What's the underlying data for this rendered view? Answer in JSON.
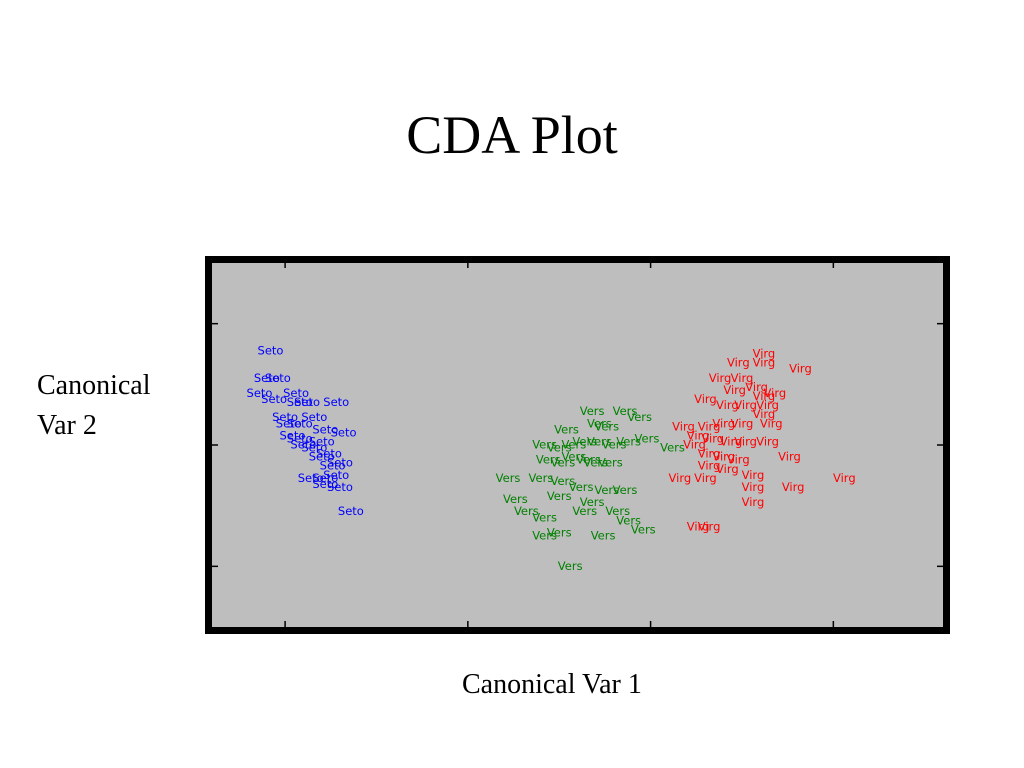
{
  "title": "CDA Plot",
  "ylabel_lines": [
    "Canonical",
    "Var 2"
  ],
  "xlabel": "Canonical Var 1",
  "chart_data": {
    "type": "scatter",
    "title": "CDA Plot",
    "xlabel": "Canonical Var 1",
    "ylabel": "Canonical Var 2",
    "xlim": [
      -10,
      10
    ],
    "ylim": [
      -3,
      3
    ],
    "grid": false,
    "background": "#bebebe",
    "series": [
      {
        "name": "Seto",
        "color": "#0000ff",
        "points": [
          [
            -8.4,
            1.55
          ],
          [
            -8.5,
            1.1
          ],
          [
            -8.2,
            1.1
          ],
          [
            -8.7,
            0.85
          ],
          [
            -8.3,
            0.75
          ],
          [
            -7.7,
            0.85
          ],
          [
            -7.6,
            0.7
          ],
          [
            -7.4,
            0.7
          ],
          [
            -6.6,
            0.7
          ],
          [
            -8.0,
            0.45
          ],
          [
            -7.9,
            0.35
          ],
          [
            -7.6,
            0.35
          ],
          [
            -7.2,
            0.45
          ],
          [
            -6.9,
            0.25
          ],
          [
            -6.4,
            0.2
          ],
          [
            -7.8,
            0.15
          ],
          [
            -7.5,
            0.0
          ],
          [
            -7.2,
            -0.05
          ],
          [
            -7.0,
            -0.2
          ],
          [
            -6.8,
            -0.15
          ],
          [
            -6.7,
            -0.35
          ],
          [
            -7.3,
            -0.55
          ],
          [
            -6.9,
            -0.55
          ],
          [
            -6.6,
            -0.5
          ],
          [
            -6.5,
            -0.3
          ],
          [
            -6.9,
            -0.65
          ],
          [
            -6.5,
            -0.7
          ],
          [
            -6.2,
            -1.1
          ],
          [
            -7.6,
            0.1
          ],
          [
            -7.0,
            0.05
          ]
        ]
      },
      {
        "name": "Vers",
        "color": "#008000",
        "points": [
          [
            -0.3,
            0.25
          ],
          [
            0.4,
            0.55
          ],
          [
            0.6,
            0.35
          ],
          [
            0.8,
            0.3
          ],
          [
            1.3,
            0.55
          ],
          [
            1.7,
            0.45
          ],
          [
            -0.9,
            0.0
          ],
          [
            -0.5,
            -0.05
          ],
          [
            -0.1,
            0.0
          ],
          [
            0.2,
            0.05
          ],
          [
            0.6,
            0.05
          ],
          [
            1.0,
            0.0
          ],
          [
            1.4,
            0.05
          ],
          [
            1.9,
            0.1
          ],
          [
            2.6,
            -0.05
          ],
          [
            -0.8,
            -0.25
          ],
          [
            -0.4,
            -0.3
          ],
          [
            -0.1,
            -0.2
          ],
          [
            0.3,
            -0.25
          ],
          [
            0.5,
            -0.3
          ],
          [
            0.9,
            -0.3
          ],
          [
            -1.9,
            -0.55
          ],
          [
            -1.0,
            -0.55
          ],
          [
            -0.4,
            -0.6
          ],
          [
            0.1,
            -0.7
          ],
          [
            0.8,
            -0.75
          ],
          [
            -1.7,
            -0.9
          ],
          [
            -0.5,
            -0.85
          ],
          [
            0.4,
            -0.95
          ],
          [
            1.3,
            -0.75
          ],
          [
            -1.4,
            -1.1
          ],
          [
            -0.9,
            -1.2
          ],
          [
            0.2,
            -1.1
          ],
          [
            1.1,
            -1.1
          ],
          [
            1.4,
            -1.25
          ],
          [
            1.8,
            -1.4
          ],
          [
            -0.9,
            -1.5
          ],
          [
            -0.5,
            -1.45
          ],
          [
            0.7,
            -1.5
          ],
          [
            -0.2,
            -2.0
          ]
        ]
      },
      {
        "name": "Virg",
        "color": "#ff0000",
        "points": [
          [
            5.1,
            1.5
          ],
          [
            4.4,
            1.35
          ],
          [
            5.1,
            1.35
          ],
          [
            6.1,
            1.25
          ],
          [
            3.9,
            1.1
          ],
          [
            4.5,
            1.1
          ],
          [
            4.9,
            0.95
          ],
          [
            4.3,
            0.9
          ],
          [
            5.1,
            0.8
          ],
          [
            5.4,
            0.85
          ],
          [
            3.5,
            0.75
          ],
          [
            4.1,
            0.65
          ],
          [
            4.6,
            0.65
          ],
          [
            5.2,
            0.65
          ],
          [
            2.9,
            0.3
          ],
          [
            3.6,
            0.3
          ],
          [
            4.0,
            0.35
          ],
          [
            4.5,
            0.35
          ],
          [
            5.1,
            0.5
          ],
          [
            5.3,
            0.35
          ],
          [
            3.3,
            0.15
          ],
          [
            3.7,
            0.1
          ],
          [
            4.2,
            0.05
          ],
          [
            4.6,
            0.05
          ],
          [
            5.2,
            0.05
          ],
          [
            3.2,
            0.0
          ],
          [
            3.6,
            -0.15
          ],
          [
            4.0,
            -0.2
          ],
          [
            4.4,
            -0.25
          ],
          [
            5.8,
            -0.2
          ],
          [
            3.6,
            -0.35
          ],
          [
            4.1,
            -0.4
          ],
          [
            4.8,
            -0.5
          ],
          [
            2.8,
            -0.55
          ],
          [
            3.5,
            -0.55
          ],
          [
            4.8,
            -0.7
          ],
          [
            5.9,
            -0.7
          ],
          [
            7.3,
            -0.55
          ],
          [
            4.8,
            -0.95
          ],
          [
            3.3,
            -1.35
          ],
          [
            3.6,
            -1.35
          ]
        ]
      }
    ]
  }
}
